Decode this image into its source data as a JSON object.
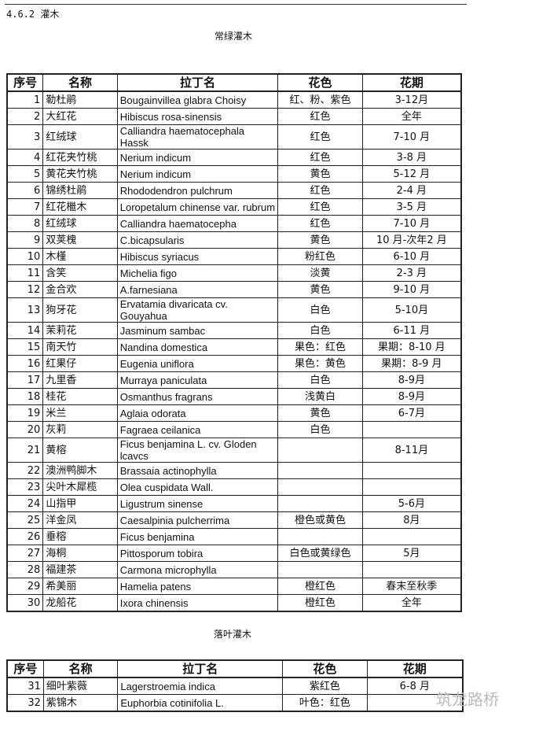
{
  "section_title": "4.6.2 灌木",
  "evergreen": {
    "caption": "常绿灌木",
    "headers": [
      "序号",
      "名称",
      "拉丁名",
      "花色",
      "花期"
    ],
    "rows": [
      [
        "1",
        "勒杜鹃",
        "Bougainvillea glabra Choisy",
        "红、粉、紫色",
        "3-12月"
      ],
      [
        "2",
        "大红花",
        "Hibiscus rosa-sinensis",
        "红色",
        "全年"
      ],
      [
        "3",
        "红绒球",
        "Calliandra haematocephala Hassk",
        "红色",
        "7-10 月"
      ],
      [
        "4",
        "红花夹竹桃",
        "Nerium indicum",
        "红色",
        "3-8 月"
      ],
      [
        "5",
        "黄花夹竹桃",
        "Nerium indicum",
        "黄色",
        "5-12 月"
      ],
      [
        "6",
        "锦绣杜鹃",
        "Rhododendron pulchrum",
        "红色",
        "2-4 月"
      ],
      [
        "7",
        "红花檵木",
        "Loropetalum chinense var. rubrum",
        "红色",
        "3-5 月"
      ],
      [
        "8",
        "红绒球",
        "Calliandra  haematocepha",
        "红色",
        "7-10 月"
      ],
      [
        "9",
        "双荚槐",
        "C.bicapsularis",
        "黄色",
        "10 月-次年2 月"
      ],
      [
        "10",
        "木槿",
        "Hibiscus syriacus",
        "粉红色",
        "6-10 月"
      ],
      [
        "11",
        "含笑",
        "Michelia figo",
        "淡黄",
        "2-3 月"
      ],
      [
        "12",
        "金合欢",
        "A.farnesiana",
        "黄色",
        "9-10 月"
      ],
      [
        "13",
        "狗牙花",
        "Ervatamia divaricata cv. Gouyahua",
        "白色",
        "5-10月"
      ],
      [
        "14",
        "茉莉花",
        "Jasminum sambac",
        "白色",
        "6-11 月"
      ],
      [
        "15",
        "南天竹",
        "Nandina domestica",
        "果色：红色",
        "果期：8-10 月"
      ],
      [
        "16",
        "红果仔",
        "Eugenia uniflora",
        "果色：黄色",
        "果期：8-9 月"
      ],
      [
        "17",
        "九里香",
        "Murraya paniculata",
        "白色",
        "8-9月"
      ],
      [
        "18",
        "桂花",
        "Osmanthus fragrans",
        "浅黄白",
        "8-9月"
      ],
      [
        "19",
        "米兰",
        "Aglaia odorata",
        "黄色",
        "6-7月"
      ],
      [
        "20",
        "灰莉",
        "Fagraea ceilanica",
        "白色",
        ""
      ],
      [
        "21",
        "黄榕",
        "Ficus benjamina L. cv. Gloden lcavcs",
        "",
        "8-11月"
      ],
      [
        "22",
        "澳洲鸭脚木",
        "Brassaia actinophylla",
        "",
        ""
      ],
      [
        "23",
        "尖叶木犀榄",
        "Olea cuspidata Wall.",
        "",
        ""
      ],
      [
        "24",
        "山指甲",
        "Ligustrum sinense",
        "",
        "5-6月"
      ],
      [
        "25",
        "洋金凤",
        "Caesalpinia pulcherrima",
        "橙色或黄色",
        "8月"
      ],
      [
        "26",
        "垂榕",
        "Ficus benjamina",
        "",
        ""
      ],
      [
        "27",
        "海桐",
        "Pittosporum tobira",
        "白色或黄绿色",
        "5月"
      ],
      [
        "28",
        "福建茶",
        "Carmona microphylla",
        "",
        ""
      ],
      [
        "29",
        "希美丽",
        "Hamelia patens",
        "橙红色",
        "春末至秋季"
      ],
      [
        "30",
        "龙船花",
        "Ixora chinensis",
        "橙红色",
        "全年"
      ]
    ]
  },
  "deciduous": {
    "caption": "落叶灌木",
    "headers": [
      "序号",
      "名称",
      "拉丁名",
      "花色",
      "花期"
    ],
    "rows": [
      [
        "31",
        "细叶紫薇",
        "Lagerstroemia indica",
        "紫红色",
        "6-8 月"
      ],
      [
        "32",
        "紫锦木",
        "Euphorbia  cotinifolia L.",
        "叶色：红色",
        ""
      ]
    ]
  },
  "watermark": "筑龙路桥"
}
